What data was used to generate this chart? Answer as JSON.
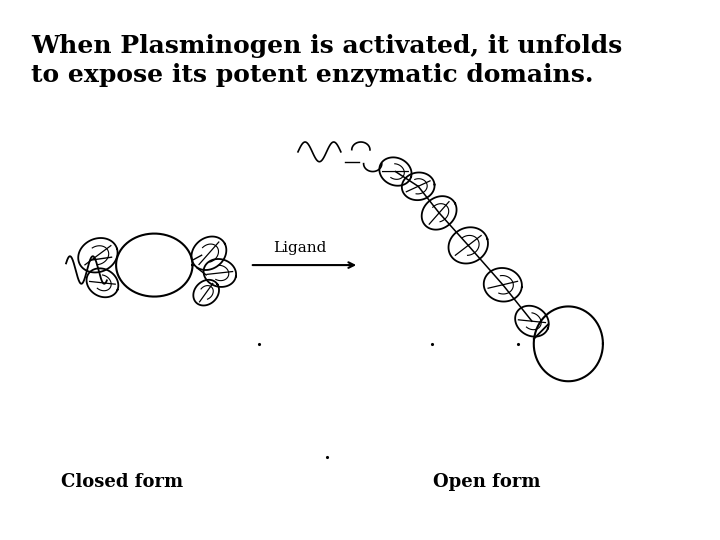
{
  "title_line1": "When Plasminogen is activated, it unfolds",
  "title_line2": "to expose its potent enzymatic domains.",
  "title_fontsize": 18,
  "title_fontweight": "bold",
  "background_color": "#ffffff",
  "text_color": "#000000",
  "label_closed": "Closed form",
  "label_open": "Open form",
  "label_ligand": "Ligand",
  "label_fontsize": 13,
  "ligand_fontsize": 11
}
